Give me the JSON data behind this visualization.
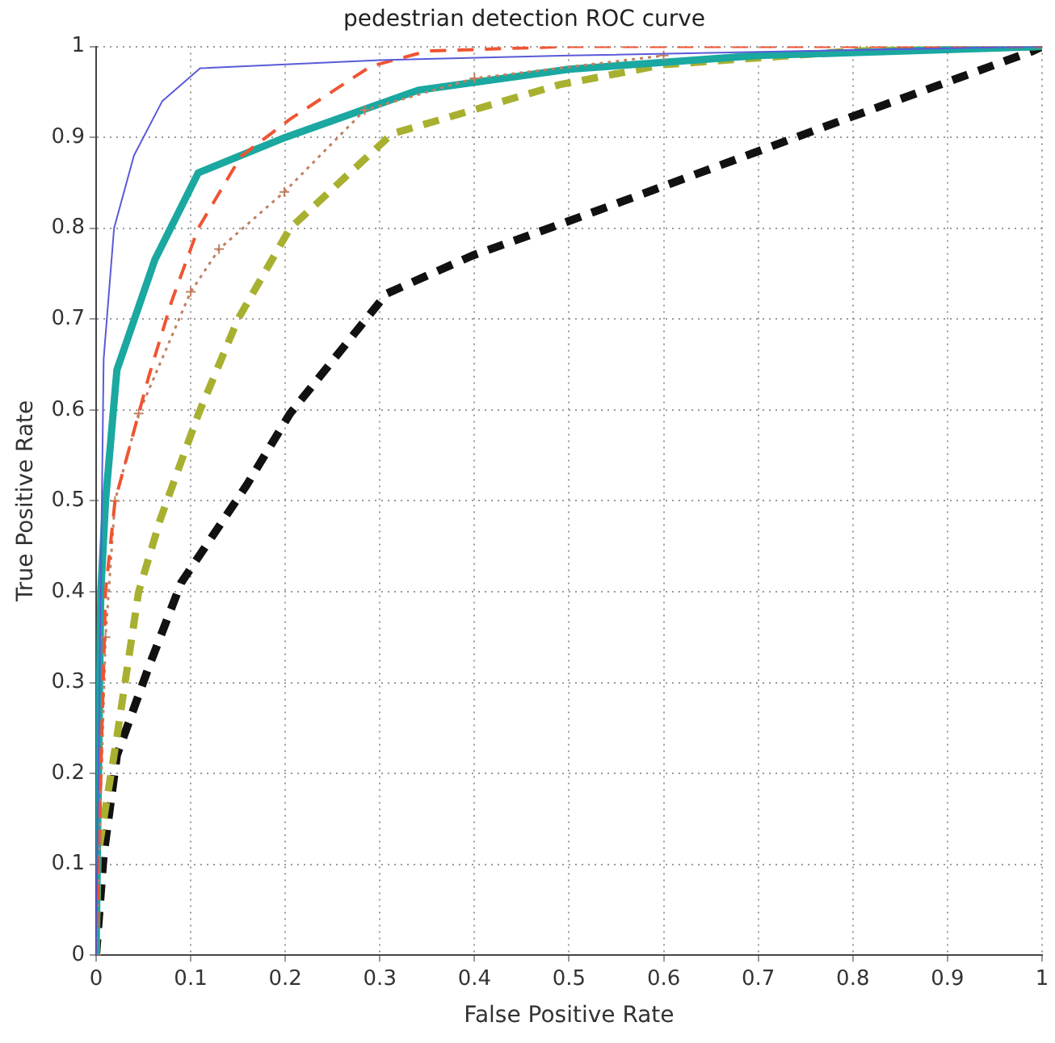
{
  "chart_data": {
    "type": "line",
    "title": "pedestrian detection ROC curve",
    "xlabel": "False Positive Rate",
    "ylabel": "True Positive Rate",
    "xlim": [
      0,
      1
    ],
    "ylim": [
      0,
      1
    ],
    "xticks": [
      0,
      0.1,
      0.2,
      0.3,
      0.4,
      0.5,
      0.6,
      0.7,
      0.8,
      0.9,
      1
    ],
    "yticks": [
      0,
      0.1,
      0.2,
      0.3,
      0.4,
      0.5,
      0.6,
      0.7,
      0.8,
      0.9,
      1
    ],
    "grid": true,
    "legend": false,
    "marker": "none",
    "series": [
      {
        "color": "#5a5ad8",
        "line_style": "solid",
        "x": [
          0,
          0.008,
          0.019,
          0.04,
          0.07,
          0.11,
          0.3,
          0.5,
          1
        ],
        "values": [
          0,
          0.656,
          0.8,
          0.88,
          0.94,
          0.976,
          0.985,
          0.99,
          1
        ]
      },
      {
        "color": "#ee5533",
        "line_style": "dashed",
        "x": [
          0,
          0.01,
          0.02,
          0.056,
          0.08,
          0.108,
          0.153,
          0.205,
          0.29,
          0.35,
          0.5,
          1
        ],
        "values": [
          0,
          0.4,
          0.5,
          0.638,
          0.72,
          0.8,
          0.879,
          0.92,
          0.978,
          0.995,
          1,
          1
        ]
      },
      {
        "color": "#c08060",
        "line_style": "dotted",
        "marker": "cross",
        "x": [
          0,
          0.01,
          0.02,
          0.045,
          0.1,
          0.13,
          0.199,
          0.284,
          0.4,
          0.6
        ],
        "values": [
          0,
          0.35,
          0.5,
          0.596,
          0.73,
          0.777,
          0.84,
          0.93,
          0.965,
          0.99
        ]
      },
      {
        "color": "#1aa8a0",
        "line_style": "solid",
        "x": [
          0,
          0.005,
          0.01,
          0.022,
          0.062,
          0.108,
          0.2,
          0.341,
          0.5,
          0.7,
          1
        ],
        "values": [
          0,
          0.4,
          0.5,
          0.644,
          0.765,
          0.861,
          0.9,
          0.952,
          0.975,
          0.99,
          1
        ]
      },
      {
        "color": "#a8b030",
        "line_style": "dashed",
        "x": [
          0,
          0.002,
          0.022,
          0.045,
          0.068,
          0.108,
          0.15,
          0.205,
          0.313,
          0.49,
          0.6,
          0.8,
          1
        ],
        "values": [
          0,
          0.11,
          0.24,
          0.4,
          0.48,
          0.595,
          0.7,
          0.8,
          0.904,
          0.958,
          0.98,
          0.995,
          1
        ]
      },
      {
        "color": "#111111",
        "line_style": "dashed",
        "x": [
          0,
          0.008,
          0.022,
          0.056,
          0.09,
          0.159,
          0.205,
          0.307,
          0.398,
          0.495,
          0.797,
          0.99,
          1
        ],
        "values": [
          0,
          0.11,
          0.22,
          0.318,
          0.41,
          0.517,
          0.596,
          0.728,
          0.77,
          0.806,
          0.922,
          0.995,
          1
        ]
      }
    ]
  }
}
